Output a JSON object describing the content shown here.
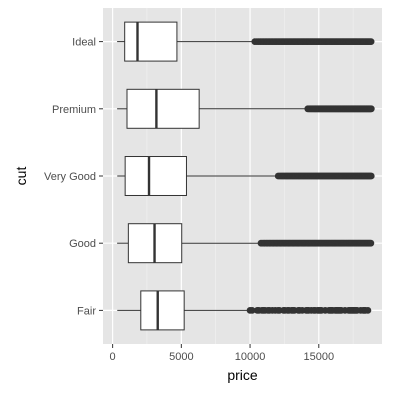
{
  "chart_data": {
    "type": "boxplot",
    "orientation": "horizontal",
    "xlabel": "price",
    "ylabel": "cut",
    "xlim": [
      -700,
      19600
    ],
    "xticks": [
      0,
      5000,
      10000,
      15000
    ],
    "xtick_labels": [
      "0",
      "5000",
      "10000",
      "15000"
    ],
    "categories": [
      "Ideal",
      "Premium",
      "Very Good",
      "Good",
      "Fair"
    ],
    "boxes": [
      {
        "category": "Ideal",
        "whisker_low": 326,
        "q1": 878,
        "median": 1810,
        "q3": 4678,
        "whisker_high": 10350,
        "outliers_from": 10350,
        "outliers_to": 18806
      },
      {
        "category": "Premium",
        "whisker_low": 326,
        "q1": 1046,
        "median": 3185,
        "q3": 6296,
        "whisker_high": 14200,
        "outliers_from": 14200,
        "outliers_to": 18823
      },
      {
        "category": "Very Good",
        "whisker_low": 336,
        "q1": 912,
        "median": 2648,
        "q3": 5373,
        "whisker_high": 12050,
        "outliers_from": 12050,
        "outliers_to": 18818
      },
      {
        "category": "Good",
        "whisker_low": 327,
        "q1": 1145,
        "median": 3050,
        "q3": 5028,
        "whisker_high": 10800,
        "outliers_from": 10800,
        "outliers_to": 18788
      },
      {
        "category": "Fair",
        "whisker_low": 337,
        "q1": 2050,
        "median": 3282,
        "q3": 5206,
        "whisker_high": 10000,
        "outliers_from": 10000,
        "outliers_to": 18574
      }
    ],
    "grid": true,
    "legend": "none"
  },
  "colors": {
    "panel_background": "#e5e5e5",
    "grid_major": "#ffffff",
    "grid_minor": "#f2f2f2",
    "box_fill": "#ffffff",
    "box_line": "#333333",
    "outlier": "#333333",
    "tick_text": "#4d4d4d"
  }
}
